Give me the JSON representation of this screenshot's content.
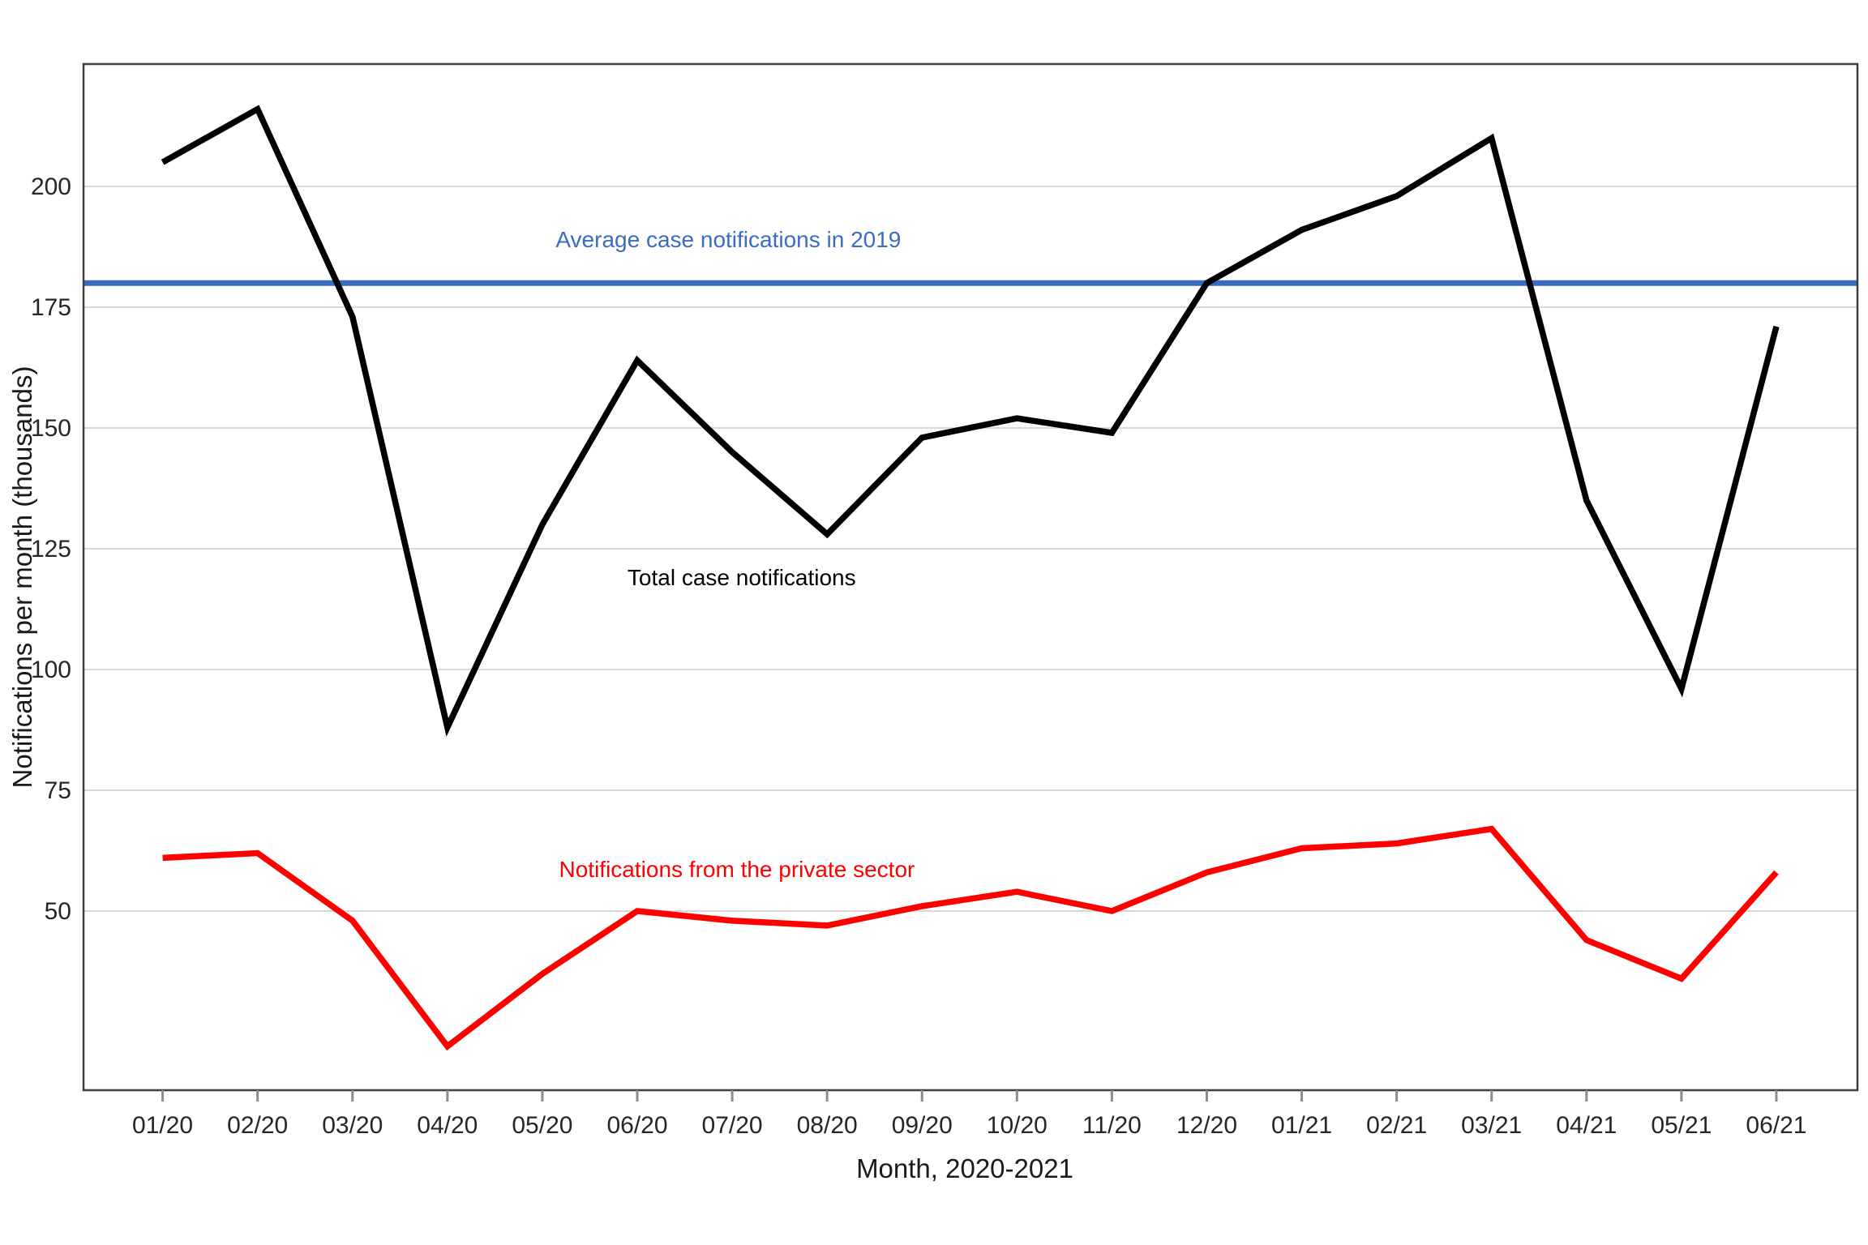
{
  "page": {
    "background": "#FFFFFF"
  },
  "chart_data": {
    "type": "line",
    "title": "",
    "xlabel": "Month, 2020-2021",
    "ylabel": "Notifications per month (thousands)",
    "categories": [
      "01/20",
      "02/20",
      "03/20",
      "04/20",
      "05/20",
      "06/20",
      "07/20",
      "08/20",
      "09/20",
      "10/20",
      "11/20",
      "12/20",
      "01/21",
      "02/21",
      "03/21",
      "04/21",
      "05/21",
      "06/21"
    ],
    "y_ticks": [
      200,
      175,
      150,
      125,
      100,
      75,
      50
    ],
    "ylim": [
      13,
      225
    ],
    "grid": "horizontal-only",
    "legend_position": "in-plot-text-labels",
    "series": [
      {
        "name": "Total case notifications",
        "color": "#000000",
        "values": [
          205,
          216,
          173,
          88,
          130,
          164,
          145,
          128,
          148,
          152,
          149,
          180,
          191,
          198,
          210,
          135,
          96,
          171
        ]
      },
      {
        "name": "Notifications from the private sector",
        "color": "#FF0000",
        "values": [
          61,
          62,
          48,
          22,
          37,
          50,
          48,
          47,
          51,
          54,
          50,
          58,
          63,
          64,
          67,
          44,
          36,
          58
        ]
      }
    ],
    "reference_line": {
      "label": "Average case notifications in 2019",
      "value": 180,
      "color": "#3A6CC4"
    },
    "annotation_positions": {
      "reference_line": {
        "x": 5.96,
        "y": 189
      },
      "series0": {
        "x": 6.1,
        "y": 119
      },
      "series1": {
        "x": 6.05,
        "y": 58.5
      }
    },
    "style": {
      "gridline_color": "#D9D9D9",
      "border_color": "#3D3D3D",
      "tick_color": "#8C8C8C",
      "tick_label_color": "#262626"
    }
  }
}
